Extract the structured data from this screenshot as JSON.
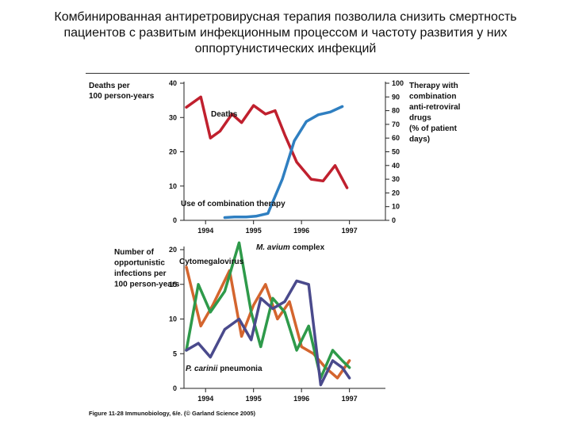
{
  "slide": {
    "title_line1": "Комбинированная антиретровирусная терапия позволила снизить смертность",
    "title_line2": "пациентов с развитым инфекционным процессом и частоту развития у них",
    "title_line3": "оппортунистических инфекций"
  },
  "figure": {
    "caption": "Figure 11-28 Immunobiology, 6/e. (© Garland Science 2005)"
  },
  "chart_data": [
    {
      "type": "line",
      "title": "",
      "xlabel": "",
      "ylabel_lines": [
        "Deaths per",
        "100 person-years"
      ],
      "y2label_lines": [
        "Therapy with",
        "combination",
        "anti-retroviral",
        "drugs",
        "(% of patient",
        "days)"
      ],
      "x_ticks": [
        "1994",
        "1995",
        "1996",
        "1997"
      ],
      "x_range": [
        1993.55,
        1997.75
      ],
      "ylim": [
        0,
        40
      ],
      "yticks": [
        0,
        10,
        20,
        30,
        40
      ],
      "y2lim": [
        0,
        100
      ],
      "y2ticks": [
        0,
        10,
        20,
        30,
        40,
        50,
        60,
        70,
        80,
        90,
        100
      ],
      "grid": false,
      "series": [
        {
          "name": "Deaths",
          "axis": "left",
          "color": "#c0202e",
          "x": [
            1993.6,
            1993.9,
            1994.1,
            1994.3,
            1994.55,
            1994.75,
            1995.0,
            1995.25,
            1995.45,
            1995.65,
            1995.9,
            1996.2,
            1996.45,
            1996.7,
            1996.95
          ],
          "values": [
            33,
            36,
            24,
            26,
            31,
            28.5,
            33.5,
            31,
            32,
            25,
            17,
            12,
            11.5,
            16,
            9.5
          ]
        },
        {
          "name": "Use of combination therapy",
          "axis": "right",
          "color": "#2f7fc1",
          "x": [
            1994.4,
            1994.6,
            1994.85,
            1995.05,
            1995.3,
            1995.6,
            1995.85,
            1996.1,
            1996.35,
            1996.6,
            1996.85
          ],
          "values": [
            2,
            2.5,
            2.5,
            3,
            5,
            30,
            58,
            72,
            77,
            79,
            83
          ]
        }
      ]
    },
    {
      "type": "line",
      "title": "",
      "xlabel": "",
      "ylabel_lines": [
        "Number of",
        "opportunistic",
        "infections per",
        "100 person-years"
      ],
      "x_ticks": [
        "1994",
        "1995",
        "1996",
        "1997"
      ],
      "x_range": [
        1993.55,
        1997.75
      ],
      "ylim": [
        0,
        20
      ],
      "yticks": [
        0,
        5,
        10,
        15,
        20
      ],
      "grid": false,
      "series": [
        {
          "name": "Cytomegalovirus",
          "color": "#d4652e",
          "x": [
            1993.6,
            1993.9,
            1994.15,
            1994.5,
            1994.75,
            1995.0,
            1995.25,
            1995.5,
            1995.75,
            1996.0,
            1996.25,
            1996.5,
            1996.75,
            1997.0
          ],
          "values": [
            17.5,
            9,
            12,
            17,
            7.5,
            12,
            15,
            10,
            12.5,
            6,
            5,
            3,
            1.5,
            4
          ]
        },
        {
          "name": "M. avium complex",
          "color": "#2e9a4a",
          "x": [
            1993.6,
            1993.85,
            1994.1,
            1994.4,
            1994.7,
            1994.95,
            1995.15,
            1995.4,
            1995.65,
            1995.9,
            1996.15,
            1996.4,
            1996.65,
            1996.85,
            1997.0
          ],
          "values": [
            5.5,
            15,
            11,
            14,
            21,
            11,
            6,
            13,
            11,
            5.5,
            9,
            1.5,
            5.5,
            4,
            3
          ]
        },
        {
          "name": "P. carinii pneumonia",
          "color": "#4a4a8c",
          "x": [
            1993.6,
            1993.85,
            1994.1,
            1994.4,
            1994.7,
            1994.95,
            1995.15,
            1995.4,
            1995.65,
            1995.9,
            1996.15,
            1996.4,
            1996.65,
            1996.85,
            1997.0
          ],
          "values": [
            5.5,
            6.5,
            4.5,
            8.5,
            10,
            7,
            13,
            11.5,
            12.5,
            15.5,
            15,
            0.5,
            4,
            3,
            1.5
          ]
        }
      ],
      "annotations": [
        "Cytomegalovirus",
        "M. avium complex",
        "P. carinii pneumonia"
      ]
    }
  ]
}
